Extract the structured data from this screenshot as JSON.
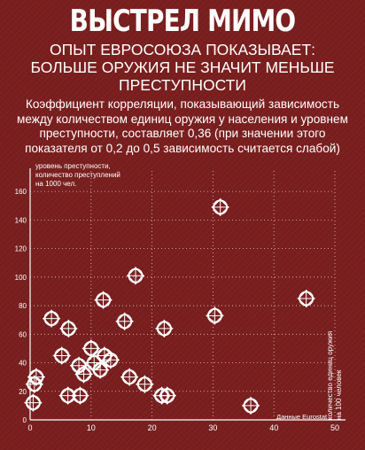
{
  "header": {
    "title": "ВЫСТРЕЛ МИМО",
    "subtitle_lines": [
      "ОПЫТ ЕВРОСОЮЗА ПОКАЗЫВАЕТ:",
      "БОЛЬШЕ ОРУЖИЯ НЕ ЗНАЧИТ МЕНЬШЕ",
      "ПРЕСТУПНОСТИ"
    ],
    "description_lines": [
      "Коэффициент корреляции, показывающий зависимость",
      "между количеством единиц оружия у населения и уровнем",
      "преступности, составляет 0,36 (при значении этого",
      "показателя от 0,2 до 0,5 зависимость считается слабой)"
    ]
  },
  "colors": {
    "background": "#7a1e1e",
    "foreground": "#ffffff",
    "grid": "#ffffff"
  },
  "chart_data": {
    "type": "scatter",
    "ylabel_lines": [
      "уровень преступности,",
      "количество преступлений",
      "на 1000 чел."
    ],
    "xlabel_lines": [
      "количество единиц оружия",
      "на 100 человек"
    ],
    "source": "Данные Eurostat",
    "xlim": [
      0,
      50
    ],
    "ylim": [
      0,
      170
    ],
    "xticks": [
      0,
      10,
      20,
      30,
      40,
      50
    ],
    "yticks": [
      0,
      20,
      40,
      60,
      80,
      100,
      120,
      140,
      160
    ],
    "grid": "dotted",
    "marker": "crosshair-diamond",
    "points": [
      {
        "x": 0.5,
        "y": 12
      },
      {
        "x": 0.7,
        "y": 25
      },
      {
        "x": 1.0,
        "y": 30
      },
      {
        "x": 3.5,
        "y": 71
      },
      {
        "x": 5.2,
        "y": 45
      },
      {
        "x": 6.2,
        "y": 17
      },
      {
        "x": 6.3,
        "y": 64
      },
      {
        "x": 8.0,
        "y": 38
      },
      {
        "x": 8.2,
        "y": 17
      },
      {
        "x": 8.8,
        "y": 32
      },
      {
        "x": 10.0,
        "y": 50
      },
      {
        "x": 10.5,
        "y": 40
      },
      {
        "x": 11.5,
        "y": 35
      },
      {
        "x": 12.0,
        "y": 84
      },
      {
        "x": 12.2,
        "y": 45
      },
      {
        "x": 13.2,
        "y": 42
      },
      {
        "x": 15.5,
        "y": 69
      },
      {
        "x": 16.3,
        "y": 30
      },
      {
        "x": 17.3,
        "y": 101
      },
      {
        "x": 18.8,
        "y": 25
      },
      {
        "x": 21.6,
        "y": 17
      },
      {
        "x": 22.0,
        "y": 64
      },
      {
        "x": 22.5,
        "y": 17
      },
      {
        "x": 30.3,
        "y": 73
      },
      {
        "x": 31.2,
        "y": 149
      },
      {
        "x": 36.2,
        "y": 10
      },
      {
        "x": 45.3,
        "y": 85
      }
    ]
  }
}
